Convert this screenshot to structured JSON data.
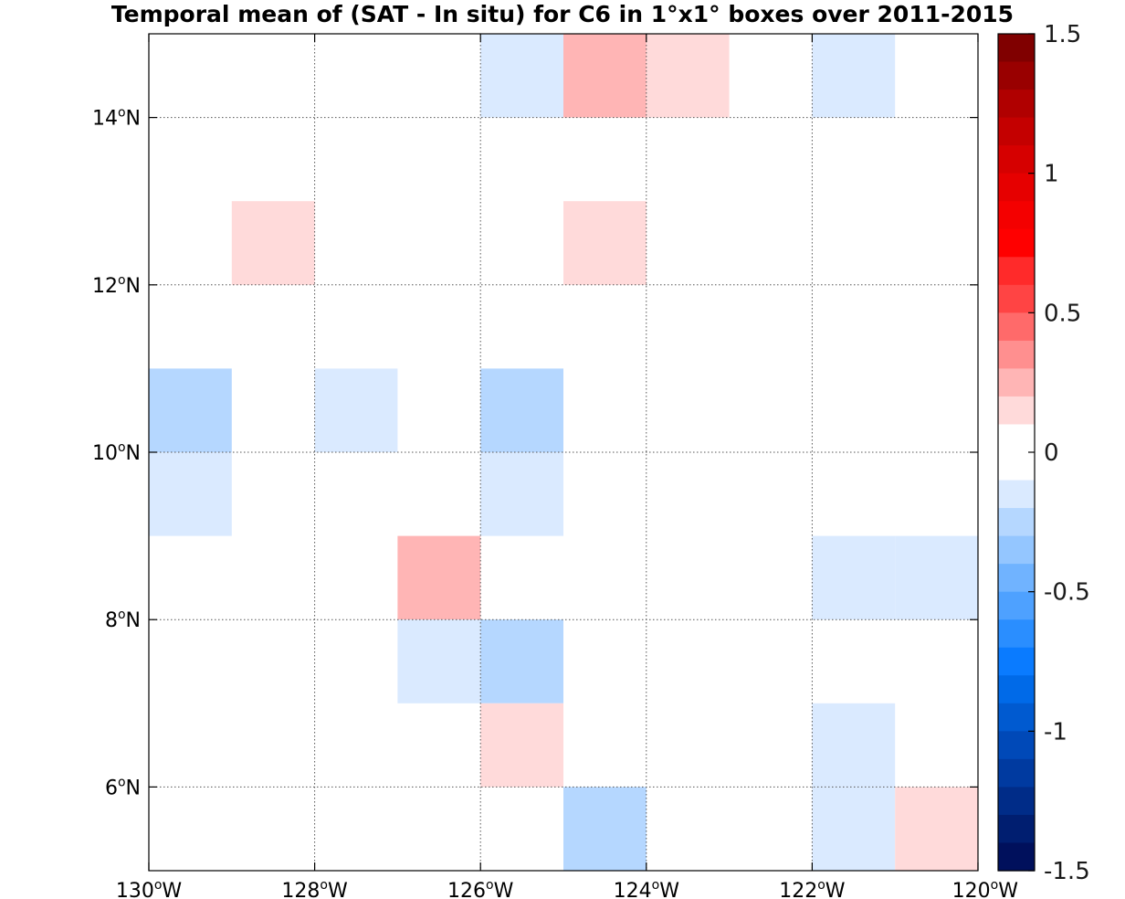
{
  "chart_data": {
    "type": "heatmap",
    "title": "Temporal mean of (SAT - In situ) for C6 in 1°x1° boxes over 2011-2015",
    "x_range": [
      -130,
      -120
    ],
    "y_range": [
      5,
      15
    ],
    "x_ticks": [
      {
        "value": -130,
        "num": "130",
        "deg": "o",
        "dir": "W"
      },
      {
        "value": -128,
        "num": "128",
        "deg": "o",
        "dir": "W"
      },
      {
        "value": -126,
        "num": "126",
        "deg": "o",
        "dir": "W"
      },
      {
        "value": -124,
        "num": "124",
        "deg": "o",
        "dir": "W"
      },
      {
        "value": -122,
        "num": "122",
        "deg": "o",
        "dir": "W"
      },
      {
        "value": -120,
        "num": "120",
        "deg": "o",
        "dir": "W"
      }
    ],
    "y_ticks": [
      {
        "value": 6,
        "num": "6",
        "deg": "o",
        "dir": "N"
      },
      {
        "value": 8,
        "num": "8",
        "deg": "o",
        "dir": "N"
      },
      {
        "value": 10,
        "num": "10",
        "deg": "o",
        "dir": "N"
      },
      {
        "value": 12,
        "num": "12",
        "deg": "o",
        "dir": "N"
      },
      {
        "value": 14,
        "num": "14",
        "deg": "o",
        "dir": "N"
      }
    ],
    "grid": true,
    "colorbar": {
      "range": [
        -1.5,
        1.5
      ],
      "ticks": [
        {
          "value": 1.5,
          "label": "1.5"
        },
        {
          "value": 1,
          "label": "1"
        },
        {
          "value": 0.5,
          "label": "0.5"
        },
        {
          "value": 0,
          "label": "0"
        },
        {
          "value": -0.5,
          "label": "-0.5"
        },
        {
          "value": -1,
          "label": "-1"
        },
        {
          "value": -1.5,
          "label": "-1.5"
        }
      ],
      "colors_top_to_bottom": [
        "#800000",
        "#990000",
        "#b00000",
        "#c40000",
        "#d60000",
        "#e60000",
        "#f40000",
        "#ff0000",
        "#ff2a2a",
        "#ff4444",
        "#ff6a6a",
        "#ff8f8f",
        "#ffb5b5",
        "#ffdada",
        "#ffffff",
        "#ffffff",
        "#daeaff",
        "#b5d7ff",
        "#94c6ff",
        "#70b3ff",
        "#4ea1ff",
        "#2a8eff",
        "#0a7bff",
        "#006ae8",
        "#005ad0",
        "#0049b8",
        "#003aa0",
        "#002c88",
        "#001e70",
        "#00105c"
      ]
    },
    "cells": [
      {
        "lon": -126,
        "lat": 14,
        "value": -0.15
      },
      {
        "lon": -125,
        "lat": 14,
        "value": 0.25
      },
      {
        "lon": -124,
        "lat": 14,
        "value": 0.15
      },
      {
        "lon": -122,
        "lat": 14,
        "value": -0.15
      },
      {
        "lon": -129,
        "lat": 12,
        "value": 0.15
      },
      {
        "lon": -125,
        "lat": 12,
        "value": 0.15
      },
      {
        "lon": -130,
        "lat": 10,
        "value": -0.25
      },
      {
        "lon": -128,
        "lat": 10,
        "value": -0.15
      },
      {
        "lon": -126,
        "lat": 10,
        "value": -0.25
      },
      {
        "lon": -130,
        "lat": 9,
        "value": -0.15
      },
      {
        "lon": -126,
        "lat": 9,
        "value": -0.15
      },
      {
        "lon": -127,
        "lat": 8,
        "value": 0.25
      },
      {
        "lon": -122,
        "lat": 8,
        "value": -0.15
      },
      {
        "lon": -121,
        "lat": 8,
        "value": -0.15
      },
      {
        "lon": -127,
        "lat": 7,
        "value": -0.15
      },
      {
        "lon": -126,
        "lat": 7,
        "value": -0.25
      },
      {
        "lon": -126,
        "lat": 6,
        "value": 0.15
      },
      {
        "lon": -122,
        "lat": 6,
        "value": -0.15
      },
      {
        "lon": -125,
        "lat": 5,
        "value": -0.25
      },
      {
        "lon": -122,
        "lat": 5,
        "value": -0.15
      },
      {
        "lon": -121,
        "lat": 5,
        "value": 0.15
      }
    ]
  }
}
